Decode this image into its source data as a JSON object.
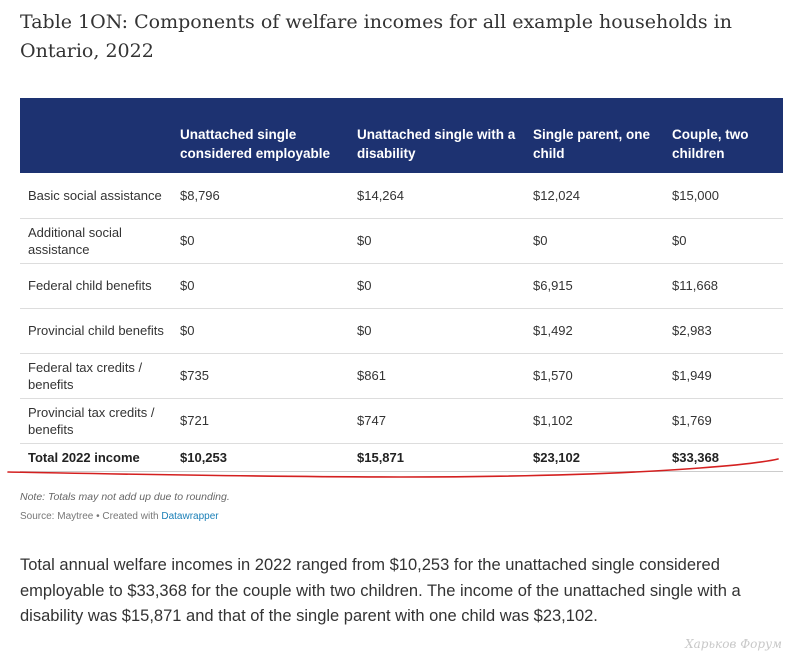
{
  "title": "Table 1ON: Components of welfare incomes for all example households in Ontario, 2022",
  "table": {
    "headers": [
      "",
      "Unattached single considered employable",
      "Unattached single with a disability",
      "Single parent, one child",
      "Couple, two children"
    ],
    "rows": [
      [
        "Basic social assistance",
        "$8,796",
        "$14,264",
        "$12,024",
        "$15,000"
      ],
      [
        "Additional social assistance",
        "$0",
        "$0",
        "$0",
        "$0"
      ],
      [
        "Federal child benefits",
        "$0",
        "$0",
        "$6,915",
        "$11,668"
      ],
      [
        "Provincial child benefits",
        "$0",
        "$0",
        "$1,492",
        "$2,983"
      ],
      [
        "Federal tax credits / benefits",
        "$735",
        "$861",
        "$1,570",
        "$1,949"
      ],
      [
        "Provincial tax credits / benefits",
        "$721",
        "$747",
        "$1,102",
        "$1,769"
      ]
    ],
    "total_row": [
      "Total 2022 income",
      "$10,253",
      "$15,871",
      "$23,102",
      "$33,368"
    ]
  },
  "note": "Note: Totals may not add up due to rounding.",
  "source": {
    "prefix": "Source: Maytree • Created with ",
    "link": "Datawrapper"
  },
  "paragraph": "Total annual welfare incomes in 2022 ranged from $10,253 for the unattached single considered employable to $33,368 for the couple with two children. The income of the unattached single with a disability was $15,871 and that of the single parent with one child was $23,102.",
  "watermark": "Харьков Форум",
  "colors": {
    "header_bg": "#1d3271",
    "annotation": "#d42020",
    "link": "#1a7fb7"
  }
}
